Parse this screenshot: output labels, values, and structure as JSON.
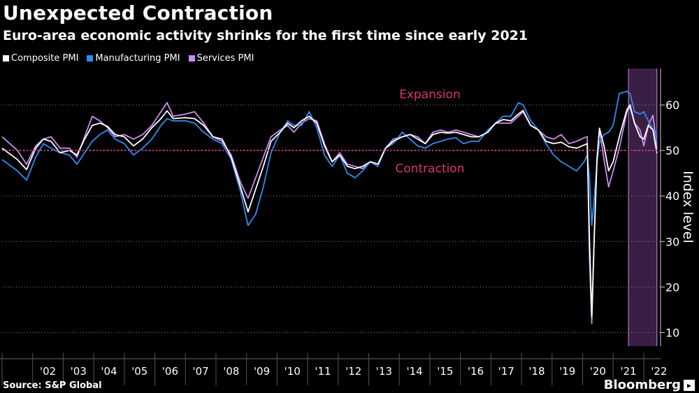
{
  "header": {
    "title": "Unexpected Contraction",
    "subtitle": "Euro-area economic activity shrinks for the first time since early 2021"
  },
  "legend": {
    "items": [
      {
        "label": "Composite PMI",
        "color": "#ffffff"
      },
      {
        "label": "Manufacturing PMI",
        "color": "#2f8cf0"
      },
      {
        "label": "Services PMI",
        "color": "#c98cf0"
      }
    ]
  },
  "footer": {
    "source": "Source: S&P Global",
    "brand": "Bloomberg",
    "brand_mark": "▸"
  },
  "chart_data": {
    "type": "line",
    "ylabel": "Index level",
    "ylim": [
      7,
      68
    ],
    "yticks": [
      10,
      20,
      30,
      40,
      50,
      60
    ],
    "xlim": [
      2001.0,
      2022.55
    ],
    "xticks": [
      {
        "label": "'02",
        "x": 2002.0
      },
      {
        "label": "'03",
        "x": 2003.0
      },
      {
        "label": "'04",
        "x": 2004.0
      },
      {
        "label": "'05",
        "x": 2005.0
      },
      {
        "label": "'06",
        "x": 2006.0
      },
      {
        "label": "'07",
        "x": 2007.0
      },
      {
        "label": "'08",
        "x": 2008.0
      },
      {
        "label": "'09",
        "x": 2009.0
      },
      {
        "label": "'10",
        "x": 2010.0
      },
      {
        "label": "'11",
        "x": 2011.0
      },
      {
        "label": "'12",
        "x": 2012.0
      },
      {
        "label": "'13",
        "x": 2013.0
      },
      {
        "label": "'14",
        "x": 2014.0
      },
      {
        "label": "'15",
        "x": 2015.0
      },
      {
        "label": "'16",
        "x": 2016.0
      },
      {
        "label": "'17",
        "x": 2017.0
      },
      {
        "label": "'18",
        "x": 2018.0
      },
      {
        "label": "'19",
        "x": 2019.0
      },
      {
        "label": "'20",
        "x": 2020.0
      },
      {
        "label": "'21",
        "x": 2021.0
      },
      {
        "label": "'22",
        "x": 2022.0
      }
    ],
    "reference_line": {
      "y": 50,
      "color": "#e0307e"
    },
    "annotations": [
      {
        "text": "Expansion",
        "x": 2015.0,
        "y": 61.5
      },
      {
        "text": "Contraction",
        "x": 2015.0,
        "y": 45.2
      }
    ],
    "highlight": {
      "x0": 2021.5,
      "x1": 2022.43,
      "color": "#3a1f45",
      "edge": "#c98cf0"
    },
    "series": [
      {
        "name": "Composite PMI",
        "color": "#ffffff",
        "points": [
          [
            2001.0,
            50.5
          ],
          [
            2001.5,
            48.0
          ],
          [
            2001.8,
            45.8
          ],
          [
            2002.1,
            50.5
          ],
          [
            2002.35,
            52.5
          ],
          [
            2002.6,
            52.0
          ],
          [
            2002.9,
            49.5
          ],
          [
            2003.2,
            50.0
          ],
          [
            2003.45,
            49.0
          ],
          [
            2003.7,
            52.5
          ],
          [
            2003.95,
            55.5
          ],
          [
            2004.2,
            56.0
          ],
          [
            2004.45,
            55.3
          ],
          [
            2004.7,
            53.5
          ],
          [
            2005.0,
            53.0
          ],
          [
            2005.3,
            51.0
          ],
          [
            2005.6,
            52.5
          ],
          [
            2005.9,
            55.0
          ],
          [
            2006.2,
            57.0
          ],
          [
            2006.4,
            58.7
          ],
          [
            2006.6,
            57.0
          ],
          [
            2007.0,
            57.2
          ],
          [
            2007.3,
            57.0
          ],
          [
            2007.6,
            55.5
          ],
          [
            2007.9,
            53.0
          ],
          [
            2008.2,
            52.5
          ],
          [
            2008.5,
            48.5
          ],
          [
            2008.8,
            42.0
          ],
          [
            2009.05,
            36.5
          ],
          [
            2009.3,
            41.5
          ],
          [
            2009.55,
            46.5
          ],
          [
            2009.8,
            52.0
          ],
          [
            2010.1,
            54.0
          ],
          [
            2010.35,
            56.0
          ],
          [
            2010.55,
            55.0
          ],
          [
            2010.8,
            56.5
          ],
          [
            2011.05,
            57.5
          ],
          [
            2011.3,
            56.0
          ],
          [
            2011.55,
            51.0
          ],
          [
            2011.8,
            47.5
          ],
          [
            2012.05,
            49.0
          ],
          [
            2012.3,
            46.5
          ],
          [
            2012.55,
            46.0
          ],
          [
            2012.8,
            46.5
          ],
          [
            2013.05,
            47.5
          ],
          [
            2013.3,
            47.0
          ],
          [
            2013.55,
            50.5
          ],
          [
            2013.8,
            52.0
          ],
          [
            2014.1,
            53.0
          ],
          [
            2014.35,
            53.5
          ],
          [
            2014.6,
            52.5
          ],
          [
            2014.85,
            51.5
          ],
          [
            2015.1,
            53.5
          ],
          [
            2015.35,
            54.0
          ],
          [
            2015.6,
            53.8
          ],
          [
            2015.85,
            54.0
          ],
          [
            2016.1,
            53.5
          ],
          [
            2016.35,
            53.0
          ],
          [
            2016.6,
            53.0
          ],
          [
            2016.9,
            54.0
          ],
          [
            2017.15,
            56.0
          ],
          [
            2017.4,
            56.8
          ],
          [
            2017.65,
            56.5
          ],
          [
            2017.9,
            58.0
          ],
          [
            2018.05,
            58.8
          ],
          [
            2018.3,
            55.5
          ],
          [
            2018.55,
            54.5
          ],
          [
            2018.8,
            52.0
          ],
          [
            2019.05,
            51.5
          ],
          [
            2019.3,
            51.8
          ],
          [
            2019.55,
            50.8
          ],
          [
            2019.8,
            50.5
          ],
          [
            2020.05,
            51.2
          ],
          [
            2020.15,
            51.5
          ],
          [
            2020.22,
            31.0
          ],
          [
            2020.3,
            13.5
          ],
          [
            2020.38,
            31.0
          ],
          [
            2020.47,
            48.0
          ],
          [
            2020.55,
            54.9
          ],
          [
            2020.7,
            51.0
          ],
          [
            2020.85,
            45.5
          ],
          [
            2021.0,
            47.5
          ],
          [
            2021.2,
            53.0
          ],
          [
            2021.45,
            59.0
          ],
          [
            2021.55,
            60.0
          ],
          [
            2021.7,
            56.0
          ],
          [
            2021.88,
            53.0
          ],
          [
            2022.0,
            52.5
          ],
          [
            2022.15,
            55.5
          ],
          [
            2022.3,
            54.5
          ],
          [
            2022.43,
            49.4
          ]
        ]
      },
      {
        "name": "Manufacturing PMI",
        "color": "#2f8cf0",
        "points": [
          [
            2001.0,
            48.0
          ],
          [
            2001.5,
            45.5
          ],
          [
            2001.8,
            43.5
          ],
          [
            2002.1,
            48.5
          ],
          [
            2002.35,
            51.5
          ],
          [
            2002.6,
            50.5
          ],
          [
            2002.9,
            49.5
          ],
          [
            2003.2,
            49.0
          ],
          [
            2003.45,
            47.0
          ],
          [
            2003.7,
            49.5
          ],
          [
            2003.95,
            52.0
          ],
          [
            2004.2,
            53.5
          ],
          [
            2004.45,
            54.5
          ],
          [
            2004.7,
            52.5
          ],
          [
            2005.0,
            51.5
          ],
          [
            2005.3,
            49.0
          ],
          [
            2005.6,
            50.5
          ],
          [
            2005.9,
            52.5
          ],
          [
            2006.2,
            55.5
          ],
          [
            2006.4,
            57.0
          ],
          [
            2006.6,
            56.5
          ],
          [
            2007.0,
            56.5
          ],
          [
            2007.3,
            56.0
          ],
          [
            2007.6,
            54.0
          ],
          [
            2007.9,
            52.5
          ],
          [
            2008.2,
            51.5
          ],
          [
            2008.5,
            48.0
          ],
          [
            2008.8,
            41.0
          ],
          [
            2009.05,
            33.5
          ],
          [
            2009.3,
            36.0
          ],
          [
            2009.55,
            42.0
          ],
          [
            2009.8,
            49.5
          ],
          [
            2010.1,
            54.0
          ],
          [
            2010.35,
            56.5
          ],
          [
            2010.55,
            55.5
          ],
          [
            2010.8,
            55.5
          ],
          [
            2011.05,
            58.5
          ],
          [
            2011.3,
            55.0
          ],
          [
            2011.55,
            49.0
          ],
          [
            2011.8,
            46.5
          ],
          [
            2012.05,
            49.0
          ],
          [
            2012.3,
            45.0
          ],
          [
            2012.55,
            44.0
          ],
          [
            2012.8,
            45.5
          ],
          [
            2013.05,
            47.5
          ],
          [
            2013.3,
            46.5
          ],
          [
            2013.55,
            50.5
          ],
          [
            2013.8,
            51.5
          ],
          [
            2014.1,
            54.0
          ],
          [
            2014.35,
            52.5
          ],
          [
            2014.6,
            51.0
          ],
          [
            2014.85,
            50.5
          ],
          [
            2015.1,
            51.5
          ],
          [
            2015.35,
            52.0
          ],
          [
            2015.6,
            52.5
          ],
          [
            2015.85,
            52.8
          ],
          [
            2016.1,
            51.5
          ],
          [
            2016.35,
            52.0
          ],
          [
            2016.6,
            52.0
          ],
          [
            2016.9,
            54.5
          ],
          [
            2017.15,
            56.0
          ],
          [
            2017.4,
            57.5
          ],
          [
            2017.65,
            57.5
          ],
          [
            2017.9,
            60.5
          ],
          [
            2018.05,
            60.0
          ],
          [
            2018.3,
            56.5
          ],
          [
            2018.55,
            54.5
          ],
          [
            2018.8,
            51.5
          ],
          [
            2019.05,
            49.0
          ],
          [
            2019.3,
            47.5
          ],
          [
            2019.55,
            46.5
          ],
          [
            2019.8,
            45.5
          ],
          [
            2020.05,
            47.5
          ],
          [
            2020.15,
            49.0
          ],
          [
            2020.22,
            44.5
          ],
          [
            2020.3,
            33.5
          ],
          [
            2020.38,
            39.5
          ],
          [
            2020.47,
            47.5
          ],
          [
            2020.55,
            51.8
          ],
          [
            2020.7,
            53.5
          ],
          [
            2020.85,
            54.0
          ],
          [
            2021.0,
            55.5
          ],
          [
            2021.2,
            62.5
          ],
          [
            2021.45,
            63.0
          ],
          [
            2021.55,
            62.5
          ],
          [
            2021.7,
            58.5
          ],
          [
            2021.88,
            58.0
          ],
          [
            2022.0,
            58.5
          ],
          [
            2022.15,
            56.5
          ],
          [
            2022.3,
            54.6
          ],
          [
            2022.43,
            52.0
          ]
        ]
      },
      {
        "name": "Services PMI",
        "color": "#c98cf0",
        "points": [
          [
            2001.0,
            53.0
          ],
          [
            2001.5,
            50.0
          ],
          [
            2001.8,
            47.0
          ],
          [
            2002.1,
            51.0
          ],
          [
            2002.35,
            52.5
          ],
          [
            2002.6,
            53.0
          ],
          [
            2002.9,
            50.5
          ],
          [
            2003.2,
            50.5
          ],
          [
            2003.45,
            48.5
          ],
          [
            2003.7,
            53.0
          ],
          [
            2003.95,
            57.5
          ],
          [
            2004.2,
            56.5
          ],
          [
            2004.45,
            55.0
          ],
          [
            2004.7,
            53.0
          ],
          [
            2005.0,
            53.5
          ],
          [
            2005.3,
            52.5
          ],
          [
            2005.6,
            53.5
          ],
          [
            2005.9,
            55.5
          ],
          [
            2006.2,
            58.5
          ],
          [
            2006.4,
            60.5
          ],
          [
            2006.6,
            57.5
          ],
          [
            2007.0,
            58.0
          ],
          [
            2007.3,
            58.5
          ],
          [
            2007.6,
            56.0
          ],
          [
            2007.9,
            53.0
          ],
          [
            2008.2,
            52.0
          ],
          [
            2008.5,
            49.0
          ],
          [
            2008.8,
            43.0
          ],
          [
            2009.05,
            39.5
          ],
          [
            2009.3,
            44.0
          ],
          [
            2009.55,
            48.5
          ],
          [
            2009.8,
            53.0
          ],
          [
            2010.1,
            54.5
          ],
          [
            2010.35,
            55.5
          ],
          [
            2010.55,
            54.0
          ],
          [
            2010.8,
            56.0
          ],
          [
            2011.05,
            57.0
          ],
          [
            2011.3,
            56.5
          ],
          [
            2011.55,
            51.5
          ],
          [
            2011.8,
            47.5
          ],
          [
            2012.05,
            49.5
          ],
          [
            2012.3,
            47.0
          ],
          [
            2012.55,
            46.5
          ],
          [
            2012.8,
            46.0
          ],
          [
            2013.05,
            47.5
          ],
          [
            2013.3,
            47.0
          ],
          [
            2013.55,
            50.5
          ],
          [
            2013.8,
            52.5
          ],
          [
            2014.1,
            53.0
          ],
          [
            2014.35,
            53.5
          ],
          [
            2014.6,
            53.0
          ],
          [
            2014.85,
            51.5
          ],
          [
            2015.1,
            54.0
          ],
          [
            2015.35,
            54.5
          ],
          [
            2015.6,
            54.0
          ],
          [
            2015.85,
            54.5
          ],
          [
            2016.1,
            54.0
          ],
          [
            2016.35,
            53.5
          ],
          [
            2016.6,
            53.0
          ],
          [
            2016.9,
            54.0
          ],
          [
            2017.15,
            56.0
          ],
          [
            2017.4,
            56.0
          ],
          [
            2017.65,
            56.0
          ],
          [
            2017.9,
            57.5
          ],
          [
            2018.05,
            58.5
          ],
          [
            2018.3,
            55.5
          ],
          [
            2018.55,
            54.5
          ],
          [
            2018.8,
            53.0
          ],
          [
            2019.05,
            52.5
          ],
          [
            2019.3,
            53.5
          ],
          [
            2019.55,
            51.5
          ],
          [
            2019.8,
            52.0
          ],
          [
            2020.05,
            52.8
          ],
          [
            2020.15,
            53.0
          ],
          [
            2020.22,
            27.0
          ],
          [
            2020.3,
            12.0
          ],
          [
            2020.38,
            30.5
          ],
          [
            2020.47,
            48.5
          ],
          [
            2020.55,
            54.5
          ],
          [
            2020.7,
            48.0
          ],
          [
            2020.85,
            42.0
          ],
          [
            2021.0,
            45.5
          ],
          [
            2021.2,
            50.5
          ],
          [
            2021.45,
            58.5
          ],
          [
            2021.55,
            59.5
          ],
          [
            2021.7,
            56.0
          ],
          [
            2021.88,
            54.5
          ],
          [
            2022.0,
            51.0
          ],
          [
            2022.15,
            55.5
          ],
          [
            2022.3,
            57.7
          ],
          [
            2022.43,
            50.6
          ]
        ]
      }
    ]
  }
}
